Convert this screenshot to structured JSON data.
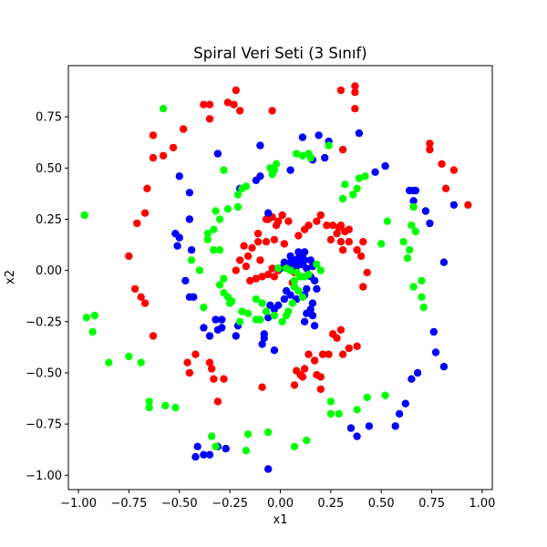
{
  "chart_data": {
    "type": "scatter",
    "title": "Spiral Veri Seti (3 Sınıf)",
    "xlabel": "x1",
    "ylabel": "x2",
    "xlim": [
      -1.05,
      1.05
    ],
    "ylim": [
      -1.07,
      1.0
    ],
    "xticks": [
      -1.0,
      -0.75,
      -0.5,
      -0.25,
      0.0,
      0.25,
      0.5,
      0.75,
      1.0
    ],
    "xtick_labels": [
      "−1.00",
      "−0.75",
      "−0.50",
      "−0.25",
      "0.00",
      "0.25",
      "0.50",
      "0.75",
      "1.00"
    ],
    "yticks": [
      -1.0,
      -0.75,
      -0.5,
      -0.25,
      0.0,
      0.25,
      0.5,
      0.75
    ],
    "ytick_labels": [
      "−1.00",
      "−0.75",
      "−0.50",
      "−0.25",
      "0.00",
      "0.25",
      "0.50",
      "0.75"
    ],
    "grid": false,
    "series": [
      {
        "color": "#ff0000",
        "points": [
          [
            -0.01,
            0.0
          ],
          [
            0.02,
            0.02
          ],
          [
            -0.04,
            0.01
          ],
          [
            -0.06,
            -0.02
          ],
          [
            -0.09,
            -0.03
          ],
          [
            -0.12,
            -0.04
          ],
          [
            -0.15,
            -0.05
          ],
          [
            -0.17,
            0.02
          ],
          [
            -0.16,
            0.07
          ],
          [
            -0.14,
            0.11
          ],
          [
            -0.11,
            0.14
          ],
          [
            -0.07,
            0.14
          ],
          [
            -0.03,
            0.15
          ],
          [
            0.02,
            0.13
          ],
          [
            -0.18,
            0.12
          ],
          [
            -0.2,
            0.05
          ],
          [
            -0.22,
            0.0
          ],
          [
            -0.11,
            0.18
          ],
          [
            -0.02,
            0.22
          ],
          [
            0.01,
            0.27
          ],
          [
            0.04,
            0.24
          ],
          [
            0.09,
            0.17
          ],
          [
            -0.07,
            0.25
          ],
          [
            -0.04,
            0.26
          ],
          [
            -0.06,
            0.25
          ],
          [
            0.14,
            0.22
          ],
          [
            0.18,
            0.24
          ],
          [
            0.2,
            0.27
          ],
          [
            0.12,
            0.2
          ],
          [
            0.26,
            0.22
          ],
          [
            0.29,
            0.21
          ],
          [
            0.3,
            0.22
          ],
          [
            0.28,
            0.18
          ],
          [
            0.32,
            0.19
          ],
          [
            0.3,
            0.14
          ],
          [
            0.31,
            0.1
          ],
          [
            0.34,
            0.14
          ],
          [
            0.38,
            0.1
          ],
          [
            0.41,
            0.14
          ],
          [
            0.4,
            0.07
          ],
          [
            0.43,
            -0.01
          ],
          [
            0.41,
            -0.08
          ],
          [
            0.28,
            -0.33
          ],
          [
            0.3,
            -0.29
          ],
          [
            0.26,
            -0.31
          ],
          [
            0.38,
            -0.37
          ],
          [
            0.34,
            -0.38
          ],
          [
            0.31,
            -0.41
          ],
          [
            0.21,
            -0.41
          ],
          [
            0.24,
            -0.41
          ],
          [
            0.14,
            -0.41
          ],
          [
            0.17,
            -0.44
          ],
          [
            0.12,
            -0.48
          ],
          [
            0.08,
            -0.49
          ],
          [
            0.11,
            -0.52
          ],
          [
            0.2,
            -0.52
          ],
          [
            0.18,
            -0.51
          ],
          [
            0.2,
            -0.58
          ],
          [
            0.07,
            -0.56
          ],
          [
            0.1,
            -0.51
          ],
          [
            -0.09,
            -0.57
          ],
          [
            -0.34,
            -0.48
          ],
          [
            -0.35,
            -0.45
          ],
          [
            -0.45,
            -0.5
          ],
          [
            -0.31,
            -0.64
          ],
          [
            -0.33,
            -0.53
          ],
          [
            -0.28,
            -0.53
          ],
          [
            -0.46,
            -0.45
          ],
          [
            -0.42,
            -0.41
          ],
          [
            -0.63,
            -0.32
          ],
          [
            -0.69,
            -0.13
          ],
          [
            -0.67,
            -0.16
          ],
          [
            -0.72,
            -0.09
          ],
          [
            -0.75,
            0.07
          ],
          [
            -0.71,
            0.23
          ],
          [
            -0.67,
            0.28
          ],
          [
            -0.66,
            0.4
          ],
          [
            -0.63,
            0.55
          ],
          [
            -0.58,
            0.56
          ],
          [
            -0.63,
            0.66
          ],
          [
            -0.53,
            0.6
          ],
          [
            -0.48,
            0.69
          ],
          [
            -0.38,
            0.81
          ],
          [
            -0.35,
            0.81
          ],
          [
            -0.35,
            0.74
          ],
          [
            -0.26,
            0.82
          ],
          [
            -0.23,
            0.81
          ],
          [
            -0.2,
            0.78
          ],
          [
            -0.22,
            0.88
          ],
          [
            -0.04,
            0.78
          ],
          [
            0.3,
            0.88
          ],
          [
            0.37,
            0.87
          ],
          [
            0.37,
            0.9
          ],
          [
            0.37,
            0.79
          ],
          [
            0.31,
            0.59
          ],
          [
            0.74,
            0.62
          ],
          [
            0.74,
            0.59
          ],
          [
            0.8,
            0.52
          ],
          [
            0.86,
            0.49
          ],
          [
            0.82,
            0.4
          ],
          [
            0.93,
            0.32
          ],
          [
            0.07,
            -0.01
          ],
          [
            0.05,
            0.03
          ],
          [
            -0.03,
            -0.03
          ],
          [
            0.06,
            -0.06
          ],
          [
            -0.1,
            0.05
          ],
          [
            -0.01,
            0.24
          ],
          [
            0.23,
            0.22
          ],
          [
            0.34,
            0.2
          ],
          [
            0.25,
            0.15
          ]
        ]
      },
      {
        "color": "#0000ff",
        "points": [
          [
            0.0,
            0.01
          ],
          [
            0.03,
            0.03
          ],
          [
            0.05,
            0.04
          ],
          [
            0.07,
            0.05
          ],
          [
            0.09,
            0.06
          ],
          [
            0.11,
            0.07
          ],
          [
            0.12,
            0.05
          ],
          [
            0.15,
            0.05
          ],
          [
            0.13,
            0.01
          ],
          [
            0.16,
            0.02
          ],
          [
            0.15,
            -0.03
          ],
          [
            0.17,
            -0.05
          ],
          [
            0.18,
            -0.09
          ],
          [
            0.13,
            -0.09
          ],
          [
            0.12,
            -0.12
          ],
          [
            0.16,
            -0.16
          ],
          [
            0.15,
            -0.19
          ],
          [
            0.13,
            -0.21
          ],
          [
            0.16,
            -0.22
          ],
          [
            0.12,
            -0.25
          ],
          [
            0.17,
            -0.27
          ],
          [
            0.02,
            0.04
          ],
          [
            0.04,
            0.02
          ],
          [
            0.08,
            0.02
          ],
          [
            0.1,
            0.03
          ],
          [
            0.05,
            0.07
          ],
          [
            0.09,
            0.09
          ],
          [
            0.12,
            0.09
          ],
          [
            0.11,
            0.03
          ],
          [
            0.03,
            -0.1
          ],
          [
            0.05,
            -0.12
          ],
          [
            0.02,
            -0.14
          ],
          [
            -0.01,
            -0.17
          ],
          [
            -0.03,
            -0.19
          ],
          [
            -0.06,
            -0.23
          ],
          [
            -0.08,
            -0.31
          ],
          [
            -0.08,
            -0.33
          ],
          [
            -0.09,
            -0.36
          ],
          [
            -0.03,
            -0.39
          ],
          [
            -0.21,
            -0.27
          ],
          [
            -0.22,
            -0.32
          ],
          [
            -0.29,
            -0.28
          ],
          [
            -0.31,
            -0.29
          ],
          [
            -0.35,
            -0.32
          ],
          [
            -0.32,
            -0.24
          ],
          [
            -0.43,
            -0.13
          ],
          [
            -0.45,
            -0.13
          ],
          [
            -0.47,
            -0.05
          ],
          [
            -0.44,
            0.1
          ],
          [
            -0.51,
            0.12
          ],
          [
            -0.52,
            0.18
          ],
          [
            -0.5,
            0.16
          ],
          [
            -0.45,
            0.25
          ],
          [
            -0.45,
            0.38
          ],
          [
            -0.5,
            0.46
          ],
          [
            -0.31,
            0.57
          ],
          [
            -0.1,
            0.61
          ],
          [
            0.05,
            0.49
          ],
          [
            0.11,
            0.65
          ],
          [
            0.16,
            0.54
          ],
          [
            0.19,
            0.66
          ],
          [
            0.24,
            0.63
          ],
          [
            0.22,
            0.55
          ],
          [
            0.39,
            0.67
          ],
          [
            0.52,
            0.51
          ],
          [
            0.47,
            0.48
          ],
          [
            0.64,
            0.39
          ],
          [
            0.66,
            0.39
          ],
          [
            0.66,
            0.34
          ],
          [
            0.67,
            0.39
          ],
          [
            0.72,
            0.29
          ],
          [
            0.74,
            0.23
          ],
          [
            0.86,
            0.32
          ],
          [
            0.81,
            0.04
          ],
          [
            0.76,
            -0.3
          ],
          [
            0.77,
            -0.4
          ],
          [
            0.81,
            -0.47
          ],
          [
            0.68,
            -0.5
          ],
          [
            0.65,
            -0.53
          ],
          [
            0.62,
            -0.65
          ],
          [
            0.59,
            -0.7
          ],
          [
            0.57,
            -0.76
          ],
          [
            0.44,
            -0.76
          ],
          [
            0.38,
            -0.81
          ],
          [
            0.35,
            -0.77
          ],
          [
            -0.06,
            -0.97
          ],
          [
            -0.27,
            -0.87
          ],
          [
            -0.31,
            -0.86
          ],
          [
            -0.38,
            -0.9
          ],
          [
            -0.35,
            -0.9
          ],
          [
            -0.41,
            -0.86
          ],
          [
            -0.42,
            -0.91
          ],
          [
            -0.29,
            -0.24
          ],
          [
            -0.38,
            -0.28
          ],
          [
            -0.1,
            0.46
          ],
          [
            -0.12,
            0.44
          ],
          [
            -0.2,
            0.4
          ],
          [
            -0.06,
            0.28
          ],
          [
            0.08,
            -0.14
          ],
          [
            -0.05,
            -0.17
          ]
        ]
      },
      {
        "color": "#00ff00",
        "points": [
          [
            -0.01,
            0.01
          ],
          [
            0.03,
            0.01
          ],
          [
            0.05,
            0.0
          ],
          [
            0.08,
            -0.01
          ],
          [
            0.1,
            -0.03
          ],
          [
            0.12,
            -0.03
          ],
          [
            0.14,
            -0.02
          ],
          [
            0.07,
            -0.05
          ],
          [
            0.07,
            -0.08
          ],
          [
            0.09,
            -0.1
          ],
          [
            0.11,
            -0.13
          ],
          [
            0.06,
            -0.16
          ],
          [
            0.04,
            -0.2
          ],
          [
            0.03,
            -0.22
          ],
          [
            0.01,
            -0.25
          ],
          [
            -0.03,
            -0.22
          ],
          [
            -0.07,
            -0.2
          ],
          [
            -0.09,
            -0.16
          ],
          [
            -0.1,
            -0.24
          ],
          [
            -0.12,
            -0.24
          ],
          [
            -0.16,
            -0.21
          ],
          [
            -0.19,
            -0.2
          ],
          [
            -0.2,
            -0.25
          ],
          [
            -0.24,
            -0.15
          ],
          [
            -0.25,
            -0.16
          ],
          [
            -0.26,
            -0.13
          ],
          [
            -0.28,
            -0.04
          ],
          [
            -0.3,
            -0.07
          ],
          [
            -0.3,
            0.1
          ],
          [
            -0.33,
            0.1
          ],
          [
            -0.33,
            0.2
          ],
          [
            -0.36,
            0.18
          ],
          [
            -0.36,
            0.15
          ],
          [
            -0.3,
            0.25
          ],
          [
            -0.32,
            0.29
          ],
          [
            -0.26,
            0.3
          ],
          [
            -0.21,
            0.31
          ],
          [
            -0.21,
            0.37
          ],
          [
            -0.19,
            0.4
          ],
          [
            -0.17,
            0.41
          ],
          [
            -0.28,
            0.49
          ],
          [
            -0.04,
            0.47
          ],
          [
            -0.05,
            0.5
          ],
          [
            -0.03,
            0.49
          ],
          [
            -0.02,
            0.52
          ],
          [
            0.08,
            0.57
          ],
          [
            0.11,
            0.56
          ],
          [
            0.14,
            0.57
          ],
          [
            0.15,
            0.55
          ],
          [
            0.24,
            0.61
          ],
          [
            0.31,
            0.35
          ],
          [
            0.32,
            0.42
          ],
          [
            0.36,
            0.37
          ],
          [
            0.38,
            0.4
          ],
          [
            0.39,
            0.45
          ],
          [
            0.42,
            0.46
          ],
          [
            0.53,
            0.24
          ],
          [
            0.5,
            0.13
          ],
          [
            0.61,
            0.14
          ],
          [
            0.63,
            0.06
          ],
          [
            0.64,
            0.1
          ],
          [
            0.65,
            0.22
          ],
          [
            0.66,
            0.31
          ],
          [
            0.67,
            0.19
          ],
          [
            0.66,
            -0.08
          ],
          [
            0.7,
            -0.05
          ],
          [
            0.71,
            -0.18
          ],
          [
            0.7,
            -0.13
          ],
          [
            0.52,
            -0.61
          ],
          [
            0.43,
            -0.62
          ],
          [
            0.38,
            -0.68
          ],
          [
            0.29,
            -0.7
          ],
          [
            0.25,
            -0.7
          ],
          [
            0.25,
            -0.64
          ],
          [
            0.13,
            -0.83
          ],
          [
            0.07,
            -0.86
          ],
          [
            -0.06,
            -0.79
          ],
          [
            -0.16,
            -0.8
          ],
          [
            -0.17,
            -0.88
          ],
          [
            -0.34,
            -0.81
          ],
          [
            -0.32,
            -0.86
          ],
          [
            -0.52,
            -0.67
          ],
          [
            -0.57,
            -0.66
          ],
          [
            -0.65,
            -0.64
          ],
          [
            -0.65,
            -0.67
          ],
          [
            -0.69,
            -0.45
          ],
          [
            -0.75,
            -0.42
          ],
          [
            -0.85,
            -0.45
          ],
          [
            -0.93,
            -0.3
          ],
          [
            -0.92,
            -0.22
          ],
          [
            -0.96,
            -0.23
          ],
          [
            -0.97,
            0.27
          ],
          [
            -0.58,
            0.79
          ],
          [
            -0.44,
            0.05
          ],
          [
            -0.4,
            0.0
          ],
          [
            -0.38,
            -0.18
          ],
          [
            -0.28,
            -0.11
          ],
          [
            -0.12,
            -0.14
          ],
          [
            0.2,
            0.0
          ],
          [
            0.18,
            0.03
          ]
        ]
      }
    ]
  }
}
